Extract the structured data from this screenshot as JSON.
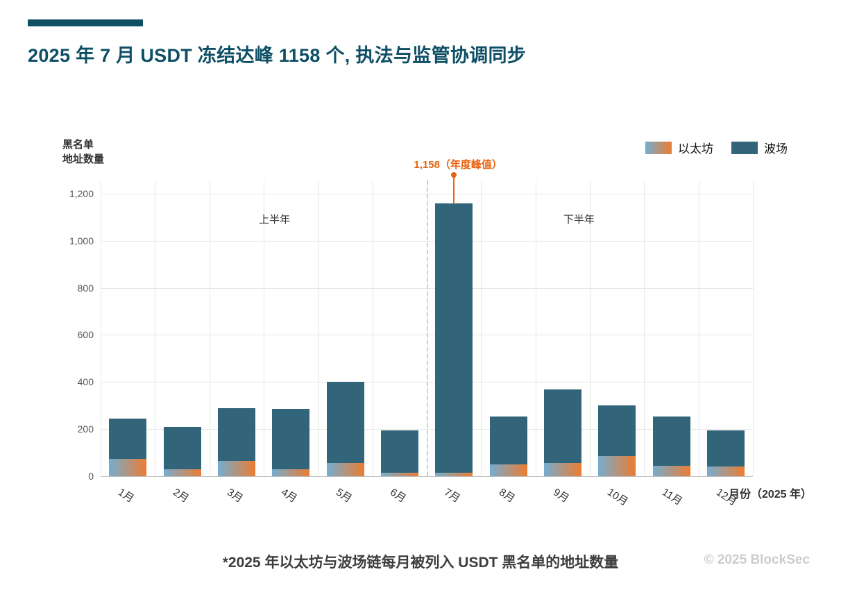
{
  "header": {
    "title": "2025 年 7 月 USDT 冻结达峰 1158 个, 执法与监管协调同步"
  },
  "chart_data": {
    "type": "bar",
    "stacked": true,
    "title": "2025 年 7 月 USDT 冻结达峰 1158 个, 执法与监管协调同步",
    "categories": [
      "1月",
      "2月",
      "3月",
      "4月",
      "5月",
      "6月",
      "7月",
      "8月",
      "9月",
      "10月",
      "11月",
      "12月"
    ],
    "series": [
      {
        "name": "以太坊",
        "values": [
          75,
          30,
          65,
          30,
          55,
          15,
          15,
          50,
          55,
          85,
          45,
          40
        ]
      },
      {
        "name": "波场",
        "values": [
          170,
          178,
          225,
          255,
          345,
          180,
          1143,
          205,
          315,
          215,
          210,
          155
        ]
      }
    ],
    "totals": [
      245,
      208,
      290,
      285,
      400,
      195,
      1158,
      255,
      370,
      300,
      255,
      195
    ],
    "ylabel_lines": [
      "黑名单",
      "地址数量"
    ],
    "xlabel": "月份（2025 年）",
    "yticks": [
      0,
      200,
      400,
      600,
      800,
      1000,
      1200
    ],
    "ymax": 1256,
    "grid": true,
    "legend": [
      "以太坊",
      "波场"
    ],
    "legend_position": "top-right",
    "annotation": {
      "text": "1,158（年度峰值）",
      "month_index": 6,
      "value": 1158
    },
    "separator": {
      "after_index": 5,
      "left_label": "上半年",
      "right_label": "下半年"
    },
    "colors": {
      "ethereum_gradient": [
        "#74add1",
        "#ec7c30"
      ],
      "tron": "#33657a",
      "annotation": "#e8610c",
      "title": "#0e4f66"
    }
  },
  "footer": {
    "note": "*2025 年以太坊与波场链每月被列入 USDT 黑名单的地址数量",
    "copyright": "© 2025 BlockSec"
  }
}
